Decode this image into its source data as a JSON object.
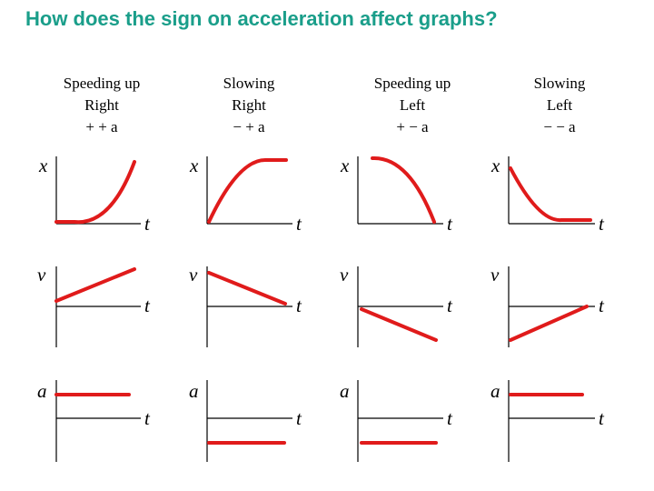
{
  "title": "How does the sign on acceleration affect graphs?",
  "columns": [
    {
      "id": "speeding-up-right",
      "line1": "Speeding up",
      "line2": "Right",
      "line3": "+ + a"
    },
    {
      "id": "slowing-right",
      "line1": "Slowing",
      "line2": "Right",
      "line3": "− + a"
    },
    {
      "id": "speeding-up-left",
      "line1": "Speeding up",
      "line2": "Left",
      "line3": "+ − a"
    },
    {
      "id": "slowing-left",
      "line1": "Slowing",
      "line2": "Left",
      "line3": "− − a"
    }
  ],
  "axis_labels": {
    "position": "x",
    "velocity": "v",
    "acceleration": "a",
    "time": "t"
  },
  "colors": {
    "title": "#1a9e8a",
    "curve": "#e01b1b",
    "axis": "#000000"
  }
}
